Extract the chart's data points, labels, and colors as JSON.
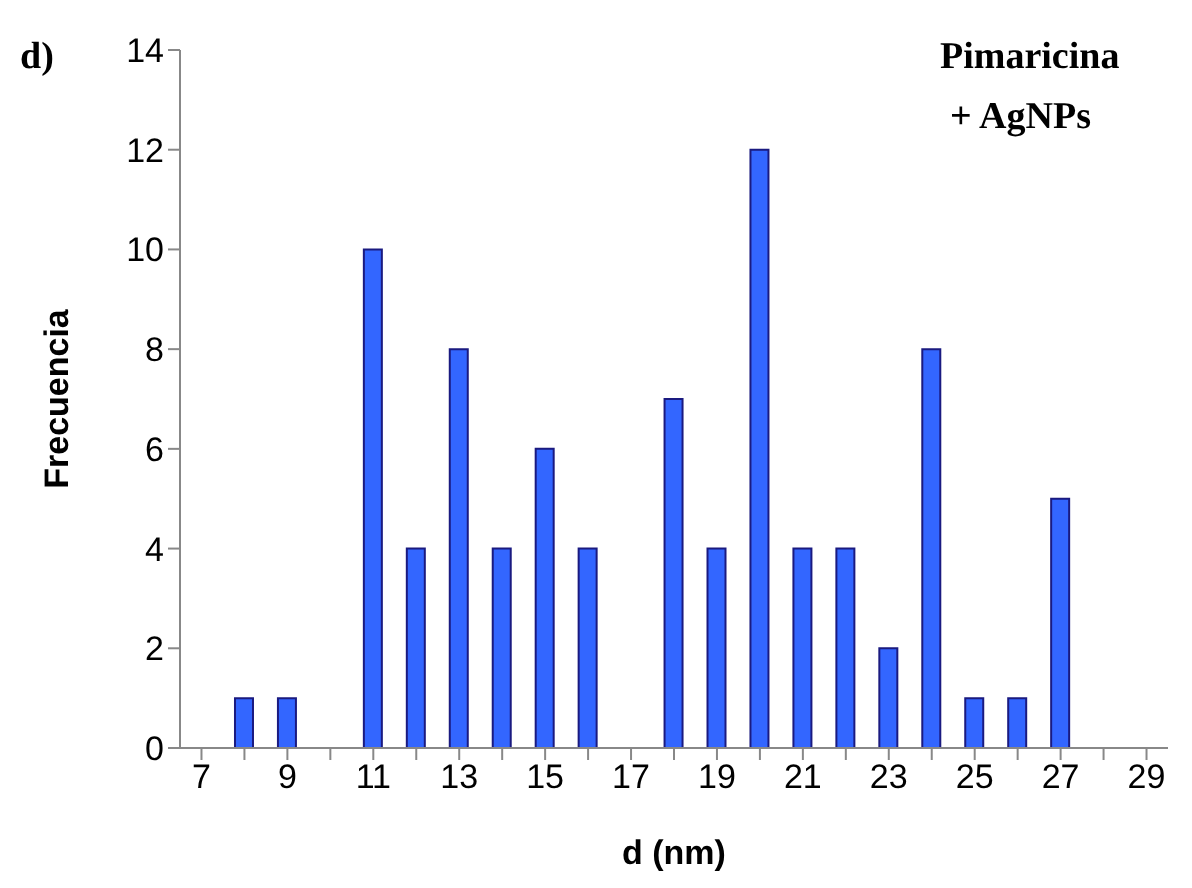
{
  "chart_data": {
    "type": "bar",
    "xlabel": "d (nm)",
    "ylabel": "Frecuencia",
    "annotations": [
      "d)",
      "Pimaricina",
      "+ AgNPs"
    ],
    "categories": [
      "7",
      null,
      "9",
      null,
      "11",
      null,
      "13",
      null,
      "15",
      null,
      "17",
      null,
      "19",
      null,
      "21",
      null,
      "23",
      null,
      "25",
      null,
      "27",
      null,
      "29"
    ],
    "values": [
      0,
      1,
      1,
      0,
      10,
      4,
      8,
      4,
      6,
      4,
      0,
      7,
      4,
      12,
      4,
      4,
      2,
      8,
      1,
      1,
      5,
      0,
      0
    ],
    "color": "#3366ff",
    "ylim": [
      0,
      14
    ],
    "yticks": [
      0,
      2,
      4,
      6,
      8,
      10,
      12,
      14
    ],
    "grid": false
  }
}
